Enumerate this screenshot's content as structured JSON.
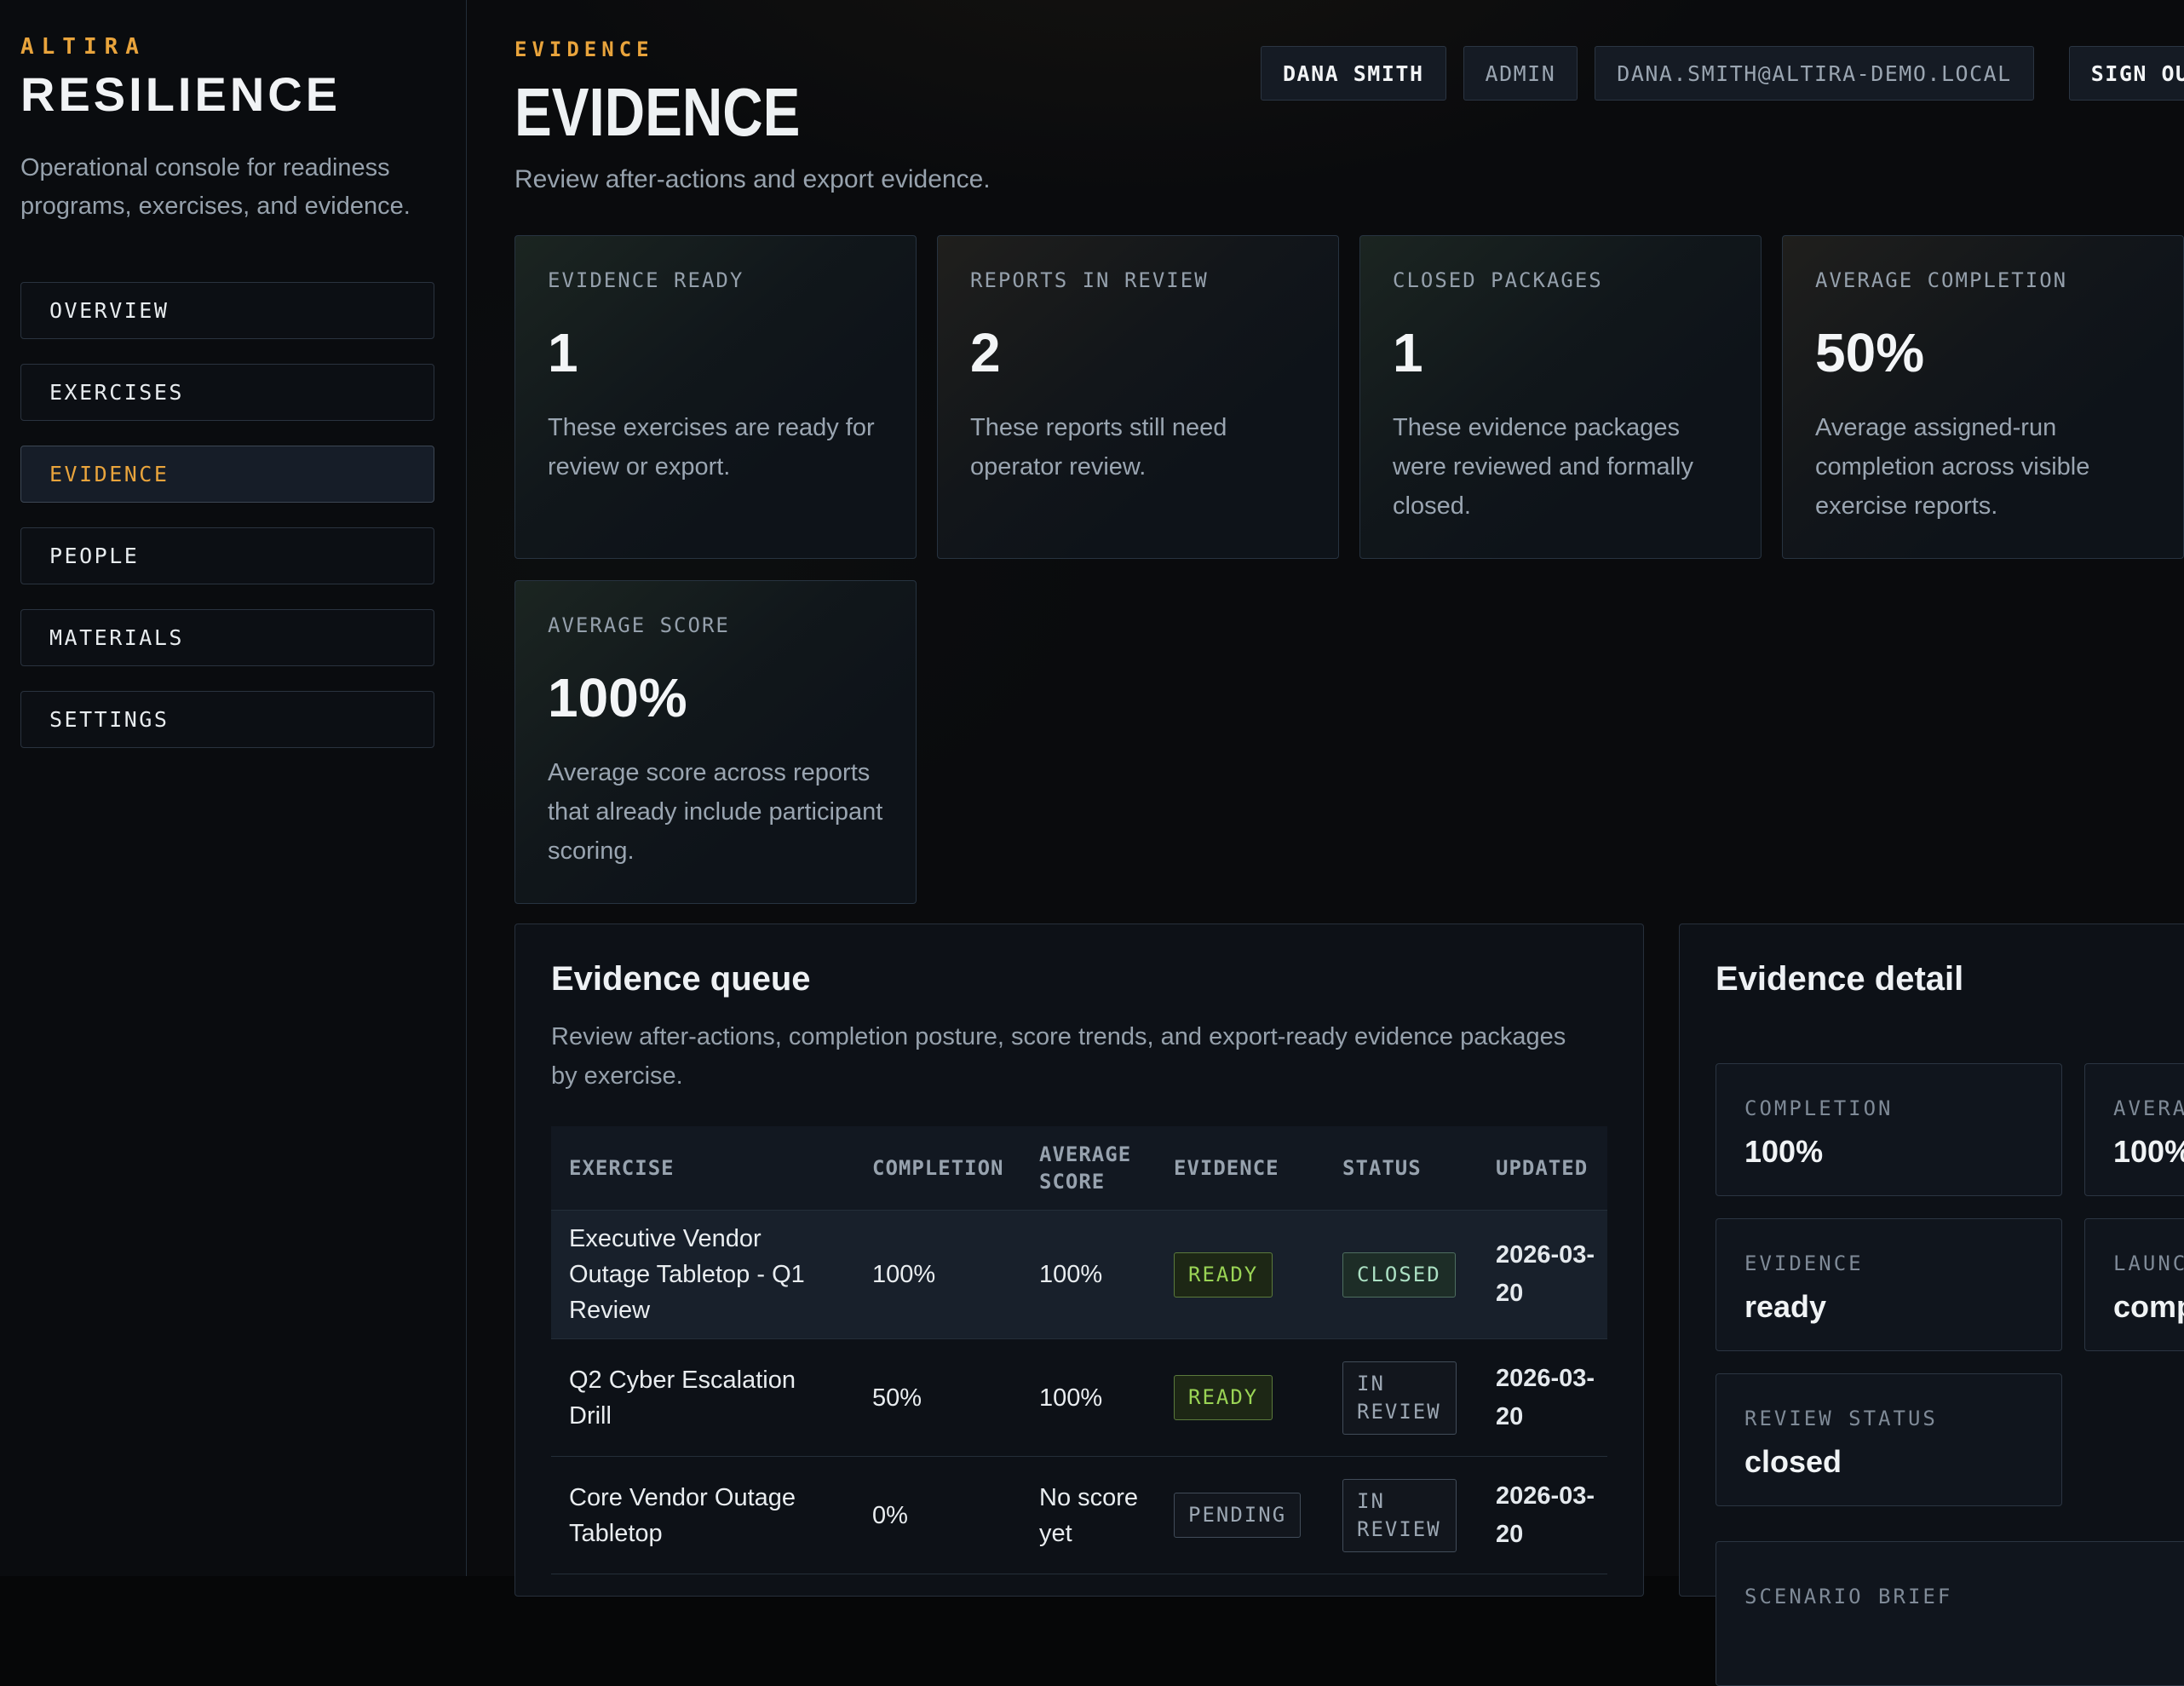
{
  "colors": {
    "accent_orange": "#e9a43c",
    "badge_green": "#9ad455",
    "badge_mint": "#abe0c3"
  },
  "sidebar": {
    "brand_eyebrow": "ALTIRA",
    "brand_title": "RESILIENCE",
    "description": "Operational console for readiness programs, exercises, and evidence.",
    "nav": [
      {
        "label": "OVERVIEW",
        "active": false
      },
      {
        "label": "EXERCISES",
        "active": false
      },
      {
        "label": "EVIDENCE",
        "active": true
      },
      {
        "label": "PEOPLE",
        "active": false
      },
      {
        "label": "MATERIALS",
        "active": false
      },
      {
        "label": "SETTINGS",
        "active": false
      }
    ]
  },
  "header": {
    "eyebrow": "EVIDENCE",
    "title": "EVIDENCE",
    "subtitle": "Review after-actions and export evidence.",
    "user": {
      "name": "DANA SMITH",
      "role": "ADMIN",
      "email": "DANA.SMITH@ALTIRA-DEMO.LOCAL",
      "sign_out": "SIGN OUT"
    }
  },
  "stats": [
    {
      "label": "EVIDENCE READY",
      "value": "1",
      "description": "These exercises are ready for review or export.",
      "tint": "green"
    },
    {
      "label": "REPORTS IN REVIEW",
      "value": "2",
      "description": "These reports still need operator review.",
      "tint": "warm"
    },
    {
      "label": "CLOSED PACKAGES",
      "value": "1",
      "description": "These evidence packages were reviewed and formally closed.",
      "tint": "green"
    },
    {
      "label": "AVERAGE COMPLETION",
      "value": "50%",
      "description": "Average assigned-run completion across visible exercise reports.",
      "tint": "warm"
    },
    {
      "label": "AVERAGE SCORE",
      "value": "100%",
      "description": "Average score across reports that already include participant scoring.",
      "tint": "green"
    }
  ],
  "queue": {
    "title": "Evidence queue",
    "subtitle": "Review after-actions, completion posture, score trends, and export-ready evidence packages by exercise.",
    "columns": [
      "EXERCISE",
      "COMPLETION",
      "AVERAGE SCORE",
      "EVIDENCE",
      "STATUS",
      "UPDATED"
    ],
    "rows": [
      {
        "exercise": "Executive Vendor Outage Tabletop - Q1 Review",
        "completion": "100%",
        "average_score": "100%",
        "evidence": "READY",
        "evidence_style": "ready",
        "status": "CLOSED",
        "status_style": "closedv",
        "updated": "2026-03-20",
        "highlighted": true
      },
      {
        "exercise": "Q2 Cyber Escalation Drill",
        "completion": "50%",
        "average_score": "100%",
        "evidence": "READY",
        "evidence_style": "ready",
        "status": "IN REVIEW",
        "status_style": "neutral",
        "updated": "2026-03-20",
        "highlighted": false
      },
      {
        "exercise": "Core Vendor Outage Tabletop",
        "completion": "0%",
        "average_score": "No score yet",
        "evidence": "PENDING",
        "evidence_style": "neutral",
        "status": "IN REVIEW",
        "status_style": "neutral",
        "updated": "2026-03-20",
        "highlighted": false
      }
    ]
  },
  "detail": {
    "title": "Evidence detail",
    "cards": [
      {
        "label": "COMPLETION",
        "value": "100%",
        "wide": false
      },
      {
        "label": "AVERAGE SCORE",
        "value": "100%",
        "wide": false
      },
      {
        "label": "EVIDENCE",
        "value": "ready",
        "wide": false
      },
      {
        "label": "LAUNCH STATUS",
        "value": "complete",
        "wide": false
      },
      {
        "label": "REVIEW STATUS",
        "value": "closed",
        "wide": false
      },
      {
        "label": "SCENARIO BRIEF",
        "value": "",
        "wide": true
      }
    ]
  }
}
